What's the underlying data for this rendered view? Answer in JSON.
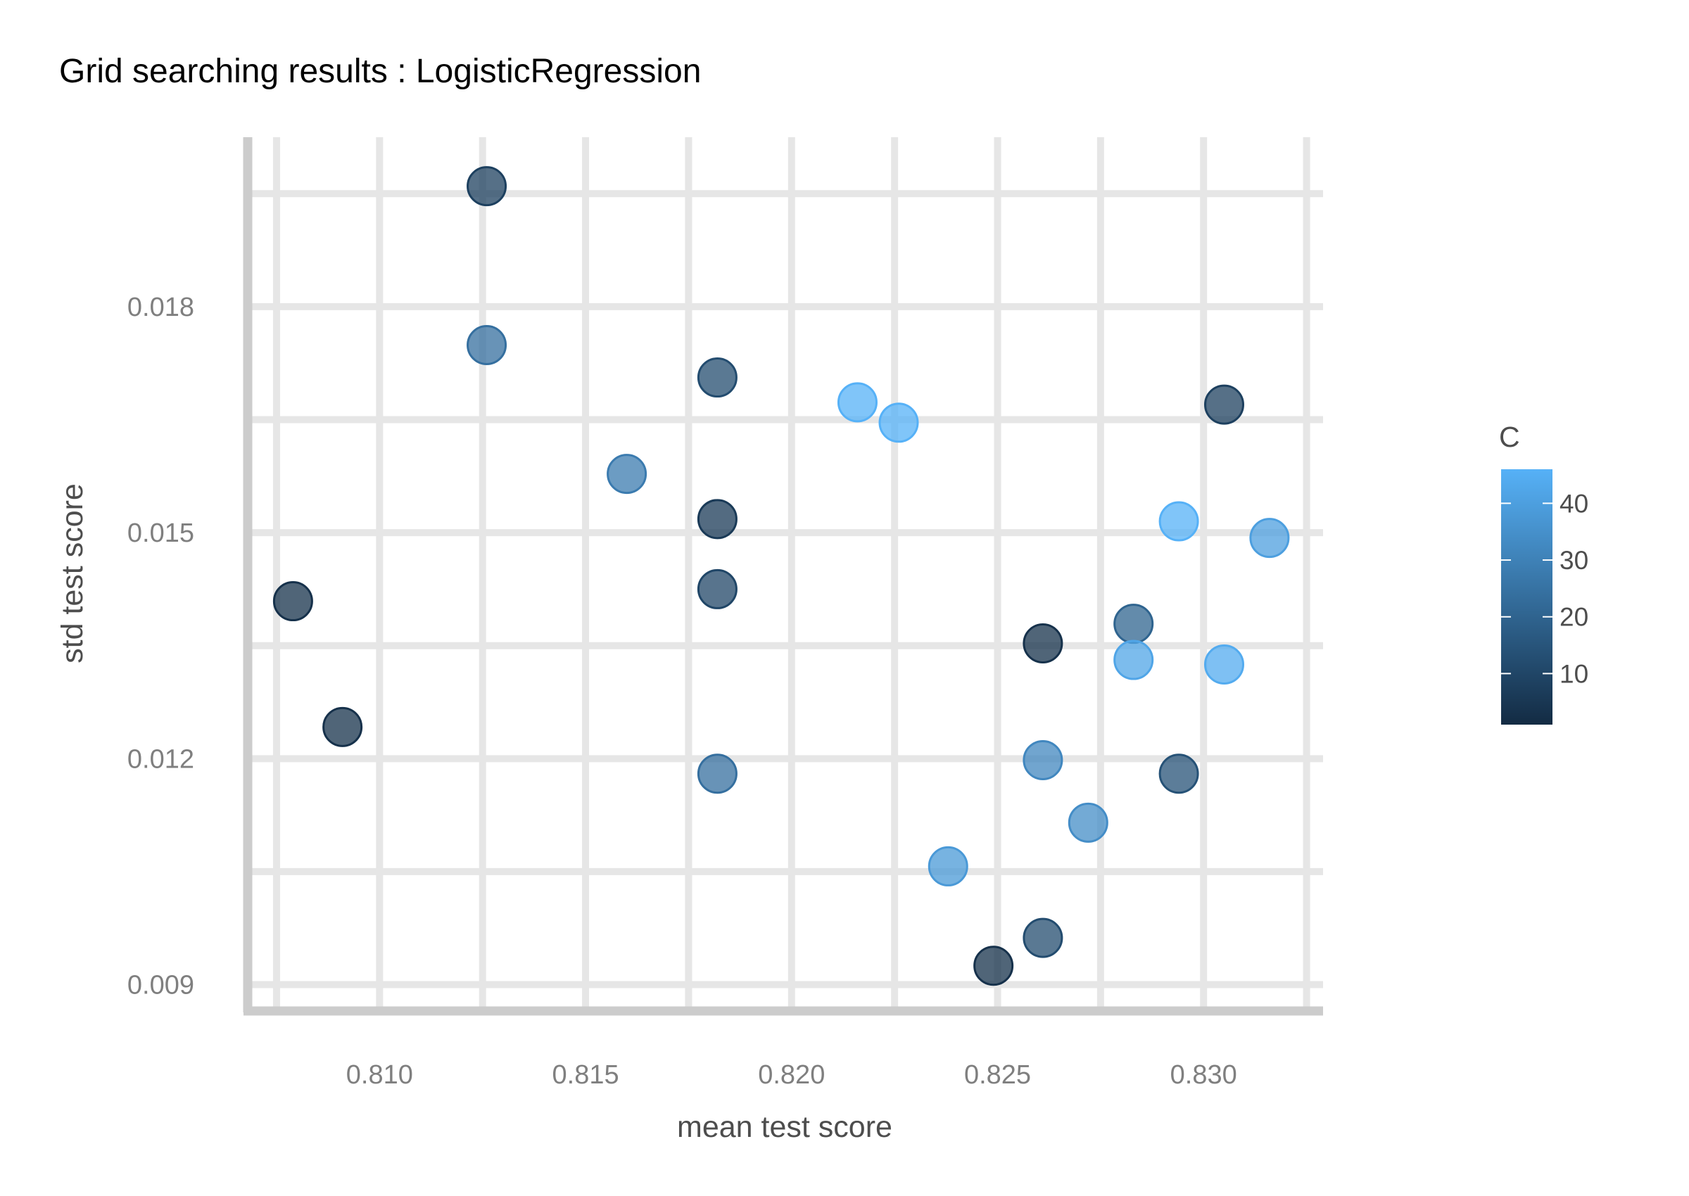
{
  "chart_data": {
    "type": "scatter",
    "title": "Grid searching results :  LogisticRegression",
    "xlabel": "mean test score",
    "ylabel": "std test score",
    "xlim": [
      0.8068,
      0.8329
    ],
    "ylim": [
      0.00865,
      0.02025
    ],
    "x_ticks": [
      0.81,
      0.815,
      0.82,
      0.825,
      0.83
    ],
    "x_tick_labels": [
      "0.810",
      "0.815",
      "0.820",
      "0.825",
      "0.830"
    ],
    "y_ticks": [
      0.009,
      0.012,
      0.015,
      0.018
    ],
    "y_tick_labels": [
      "0.009",
      "0.012",
      "0.015",
      "0.018"
    ],
    "grid": true,
    "legend": {
      "title": "C",
      "placement": "right",
      "range": [
        1,
        46
      ],
      "ticks": [
        10,
        20,
        30,
        40
      ],
      "tick_labels": [
        "10",
        "20",
        "30",
        "40"
      ],
      "color_low": "#132B43",
      "color_high": "#56B1F7"
    },
    "points": [
      {
        "x": 0.8126,
        "y": 0.0196,
        "c": 8
      },
      {
        "x": 0.8126,
        "y": 0.01749,
        "c": 24
      },
      {
        "x": 0.8182,
        "y": 0.01706,
        "c": 12
      },
      {
        "x": 0.8216,
        "y": 0.01673,
        "c": 46
      },
      {
        "x": 0.8226,
        "y": 0.01646,
        "c": 46
      },
      {
        "x": 0.8305,
        "y": 0.0167,
        "c": 8
      },
      {
        "x": 0.816,
        "y": 0.01578,
        "c": 28
      },
      {
        "x": 0.8182,
        "y": 0.01518,
        "c": 6
      },
      {
        "x": 0.8294,
        "y": 0.01515,
        "c": 46
      },
      {
        "x": 0.8316,
        "y": 0.01493,
        "c": 40
      },
      {
        "x": 0.8182,
        "y": 0.01425,
        "c": 10
      },
      {
        "x": 0.8079,
        "y": 0.01409,
        "c": 3
      },
      {
        "x": 0.8283,
        "y": 0.01379,
        "c": 20
      },
      {
        "x": 0.8261,
        "y": 0.01353,
        "c": 3
      },
      {
        "x": 0.8283,
        "y": 0.01331,
        "c": 42
      },
      {
        "x": 0.8305,
        "y": 0.01325,
        "c": 44
      },
      {
        "x": 0.8091,
        "y": 0.01242,
        "c": 3
      },
      {
        "x": 0.8261,
        "y": 0.01198,
        "c": 32
      },
      {
        "x": 0.8182,
        "y": 0.0118,
        "c": 24
      },
      {
        "x": 0.8294,
        "y": 0.0118,
        "c": 14
      },
      {
        "x": 0.8272,
        "y": 0.01115,
        "c": 34
      },
      {
        "x": 0.8238,
        "y": 0.01057,
        "c": 38
      },
      {
        "x": 0.8261,
        "y": 0.00962,
        "c": 12
      },
      {
        "x": 0.8249,
        "y": 0.00925,
        "c": 3
      }
    ]
  }
}
